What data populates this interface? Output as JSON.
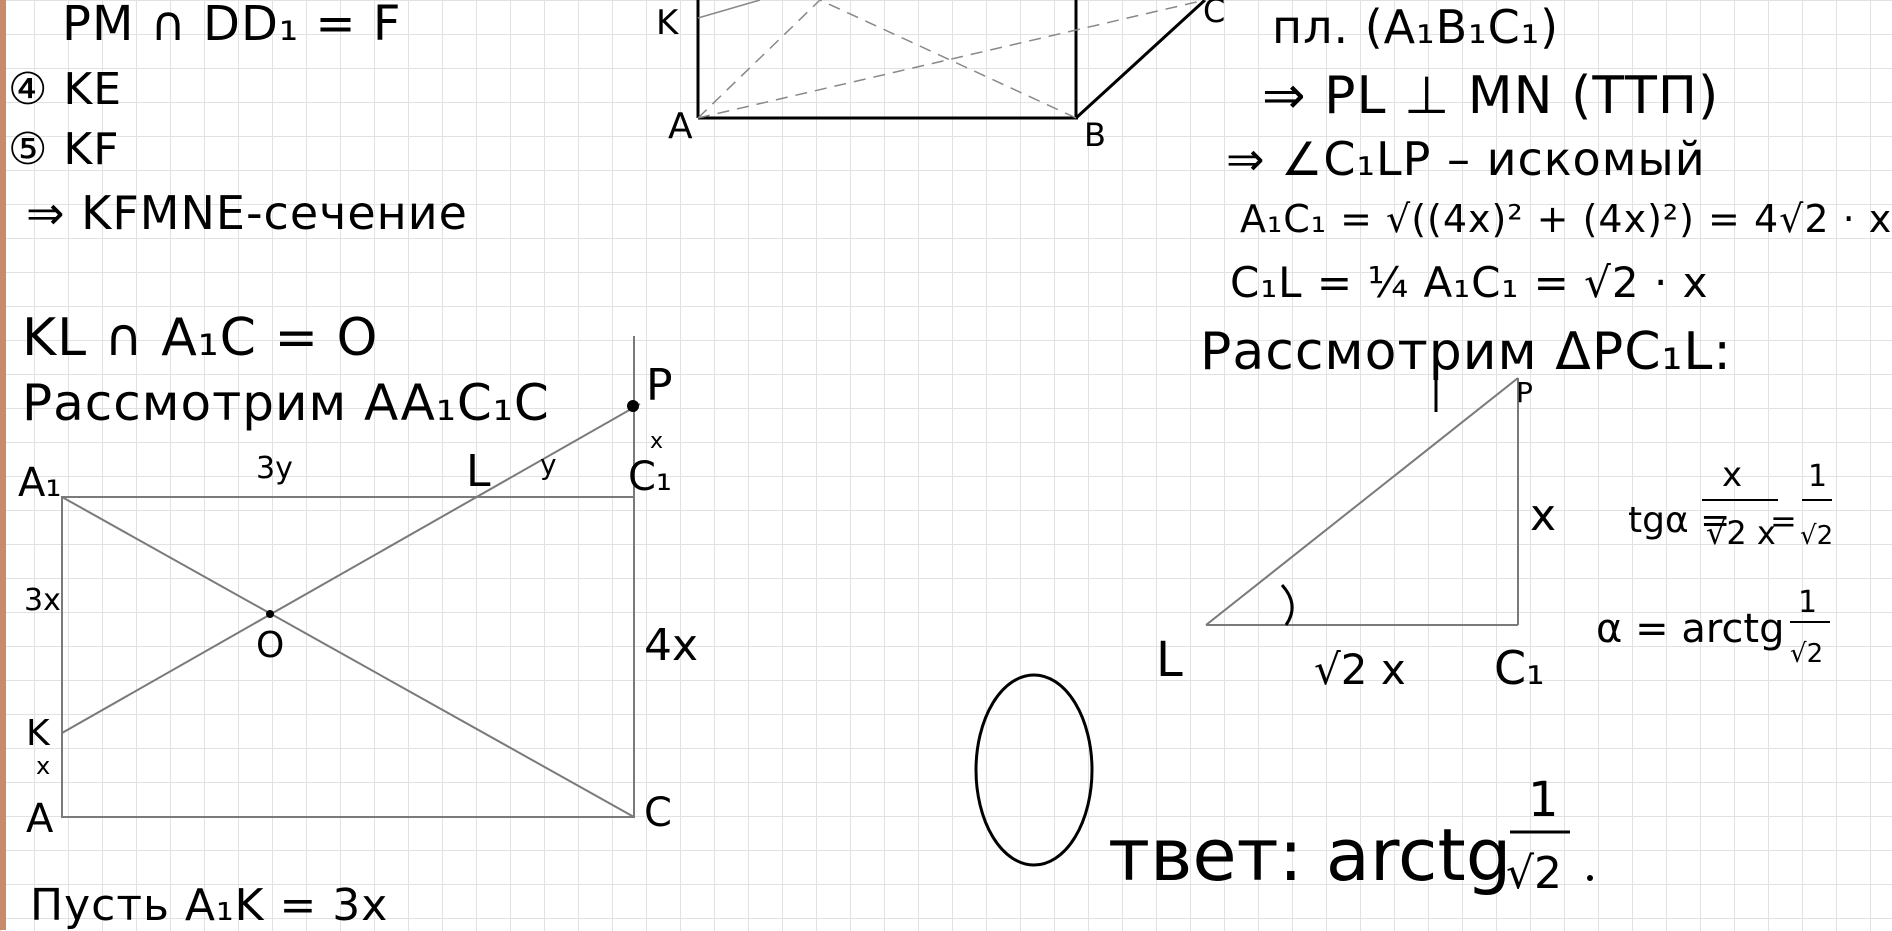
{
  "colors": {
    "ink": "#000000",
    "thin_line": "#7a7a7a",
    "grid": "#e2e2e2"
  },
  "left_notes": {
    "line1": "PM ∩ DD₁ = F",
    "line2": "④ KE",
    "line3": "⑤ KF",
    "line4": "⇒ KFMNE-сечение",
    "line5": "KL ∩ A₁C = O",
    "line6": "Рассмотрим AA₁C₁C",
    "line7": "Пусть A₁K = 3x"
  },
  "cube_top": {
    "labels": [
      "K",
      "A",
      "B",
      "C"
    ]
  },
  "rectangle": {
    "labels": {
      "A1": "A₁",
      "K": "K",
      "A": "A",
      "C": "C",
      "O": "O",
      "L": "L",
      "P": "P",
      "C1": "C₁",
      "x_top": "x",
      "three_y": "3y",
      "y": "y",
      "three_x": "3x",
      "four_x": "4x",
      "x_small": "x"
    }
  },
  "right_notes": {
    "line1": "пл. (A₁B₁C₁)",
    "line2": "⇒ PL ⊥ MN (ТТП)",
    "line3": "⇒ ∠C₁LP – искомый",
    "line4": "A₁C₁ = √((4x)² + (4x)²) = 4√2 · x",
    "line5": "C₁L = ¼ A₁C₁ = √2 · x",
    "line6": "Рассмотрим ΔPC₁L:"
  },
  "triangle": {
    "labels": {
      "P": "P",
      "L": "L",
      "C1": "C₁",
      "x_side": "x",
      "base": "√2 x"
    }
  },
  "tan_formula": {
    "lhs": "tgα = ",
    "num": "x",
    "den": "√2 x",
    "eq": " = ",
    "num2": "1",
    "den2": "√2"
  },
  "alpha_formula": {
    "text": "α = arctg",
    "num": "1",
    "den": "√2"
  },
  "answer": {
    "big_letter": "O",
    "text": "твет: arctg",
    "num": "1",
    "den": "√2"
  }
}
